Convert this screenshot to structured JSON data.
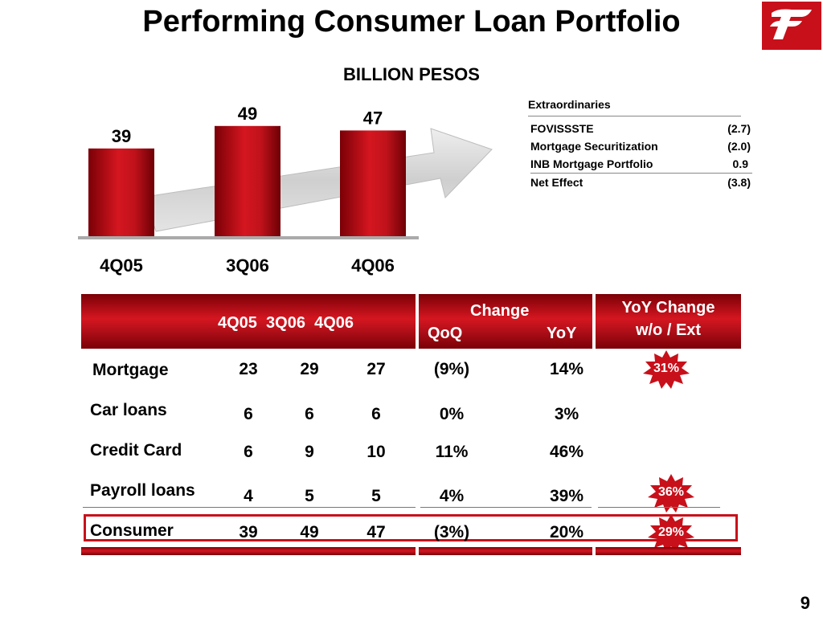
{
  "title": "Performing Consumer Loan Portfolio",
  "subtitle": "BILLION PESOS",
  "page_number": "9",
  "colors": {
    "brand_red": "#c8101a",
    "bar_dark": "#7a0006",
    "bar_light": "#d51620",
    "arrow_gray": "#d9d9d9"
  },
  "chart_data": {
    "type": "bar",
    "categories": [
      "4Q05",
      "3Q06",
      "4Q06"
    ],
    "values": [
      39,
      49,
      47
    ],
    "data_labels": [
      "39",
      "49",
      "47"
    ],
    "title": "",
    "xlabel": "",
    "ylabel": "",
    "ylim": [
      0,
      55
    ],
    "grid": false,
    "trend_arrow": true
  },
  "extraordinaries": {
    "title": "Extraordinaries",
    "rows": [
      {
        "label": "FOVISSSTE",
        "value": "(2.7)"
      },
      {
        "label": "Mortgage Securitization",
        "value": "(2.0)"
      },
      {
        "label": "INB Mortgage Portfolio",
        "value": "0.9"
      },
      {
        "label": "Net Effect",
        "value": "(3.8)"
      }
    ]
  },
  "table": {
    "header": {
      "periods": "4Q05  3Q06  4Q06",
      "change": "Change",
      "qoq": "QoQ",
      "yoy": "YoY",
      "yoy_wo_ext_line1": "YoY Change",
      "yoy_wo_ext_line2": "w/o / Ext"
    },
    "rows": [
      {
        "label": "Mortgage",
        "q4_05": "23",
        "q3_06": "29",
        "q4_06": "27",
        "qoq": "(9%)",
        "yoy": "14%",
        "yoy_wo_ext": "31%"
      },
      {
        "label": "Car loans",
        "q4_05": "6",
        "q3_06": "6",
        "q4_06": "6",
        "qoq": "0%",
        "yoy": "3%",
        "yoy_wo_ext": ""
      },
      {
        "label": "Credit Card",
        "q4_05": "6",
        "q3_06": "9",
        "q4_06": "10",
        "qoq": "11%",
        "yoy": "46%",
        "yoy_wo_ext": ""
      },
      {
        "label": "Payroll loans",
        "q4_05": "4",
        "q3_06": "5",
        "q4_06": "5",
        "qoq": "4%",
        "yoy": "39%",
        "yoy_wo_ext": "36%"
      },
      {
        "label": "Consumer",
        "q4_05": "39",
        "q3_06": "49",
        "q4_06": "47",
        "qoq": "(3%)",
        "yoy": "20%",
        "yoy_wo_ext": "29%"
      }
    ]
  }
}
